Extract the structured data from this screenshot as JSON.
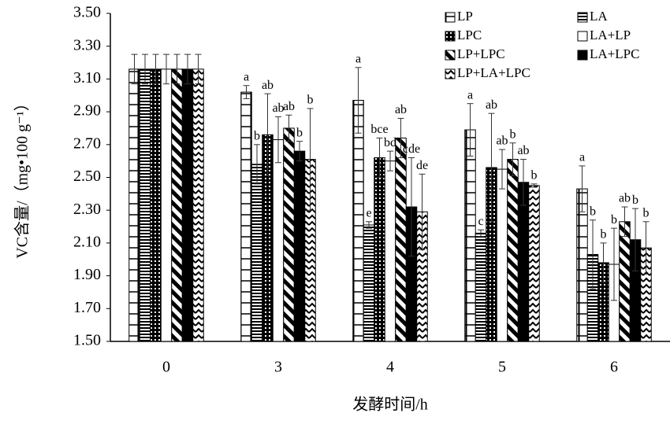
{
  "chart_data": {
    "type": "bar",
    "xlabel": "发酵时间/h",
    "ylabel": "VC含量/（mg•100 g⁻¹）",
    "categories": [
      "0",
      "3",
      "4",
      "5",
      "6"
    ],
    "ylim": [
      1.5,
      3.5
    ],
    "yticks": [
      {
        "value": 1.5,
        "label": "1.50"
      },
      {
        "value": 1.7,
        "label": "1.70"
      },
      {
        "value": 1.9,
        "label": "1.90"
      },
      {
        "value": 2.1,
        "label": "2.10"
      },
      {
        "value": 2.3,
        "label": "2.30"
      },
      {
        "value": 2.5,
        "label": "2.50"
      },
      {
        "value": 2.7,
        "label": "2.70"
      },
      {
        "value": 2.9,
        "label": "2.90"
      },
      {
        "value": 3.1,
        "label": "3.10"
      },
      {
        "value": 3.3,
        "label": "3.30"
      },
      {
        "value": 3.5,
        "label": "3.50"
      }
    ],
    "series": [
      {
        "name": "LP",
        "pattern": "ladder",
        "values": [
          3.16,
          3.02,
          2.97,
          2.79,
          2.43
        ],
        "errors": [
          0.09,
          0.04,
          0.2,
          0.16,
          0.14
        ],
        "letters": [
          null,
          "a",
          "a",
          "a",
          "a"
        ]
      },
      {
        "name": "LA",
        "pattern": "hlines",
        "values": [
          3.16,
          2.58,
          2.21,
          2.16,
          2.03
        ],
        "errors": [
          0.09,
          0.12,
          0.02,
          0.02,
          0.21
        ],
        "letters": [
          null,
          "b",
          "e",
          "c",
          "b"
        ]
      },
      {
        "name": "LPC",
        "pattern": "cross",
        "values": [
          3.16,
          2.76,
          2.62,
          2.56,
          1.98
        ],
        "errors": [
          0.09,
          0.25,
          0.12,
          0.33,
          0.12
        ],
        "letters": [
          null,
          "ab",
          "bce",
          "ab",
          "b"
        ]
      },
      {
        "name": "LA+LP",
        "pattern": "plain",
        "values": [
          3.16,
          2.73,
          2.6,
          2.55,
          1.97
        ],
        "errors": [
          0.09,
          0.14,
          0.06,
          0.12,
          0.22
        ],
        "letters": [
          null,
          "ab",
          "bd",
          "ab",
          "b"
        ]
      },
      {
        "name": "LP+LPC",
        "pattern": "diag",
        "values": [
          3.16,
          2.8,
          2.74,
          2.61,
          2.23
        ],
        "errors": [
          0.09,
          0.08,
          0.12,
          0.1,
          0.09
        ],
        "letters": [
          null,
          "ab",
          "ab",
          "b",
          "ab"
        ]
      },
      {
        "name": "LA+LPC",
        "pattern": "solid",
        "values": [
          3.16,
          2.66,
          2.32,
          2.47,
          2.12
        ],
        "errors": [
          0.09,
          0.06,
          0.3,
          0.14,
          0.19
        ],
        "letters": [
          null,
          "b",
          "cde",
          "ab",
          "b"
        ]
      },
      {
        "name": "LP+LA+LPC",
        "pattern": "dash",
        "values": [
          3.16,
          2.61,
          2.29,
          2.45,
          2.07
        ],
        "errors": [
          0.09,
          0.31,
          0.23,
          0.01,
          0.16
        ],
        "letters": [
          null,
          "b",
          "de",
          "b",
          "b"
        ]
      }
    ]
  }
}
